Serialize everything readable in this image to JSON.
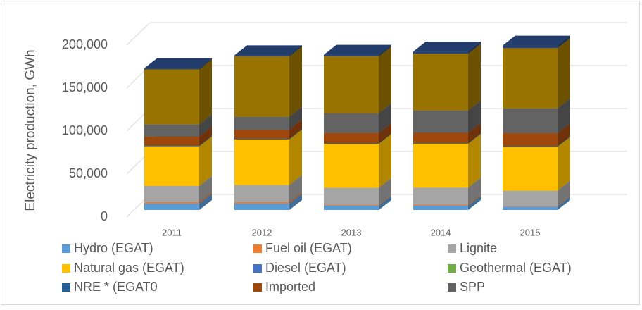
{
  "chart_data": {
    "type": "bar3d_stacked",
    "y_label": "Electricity production, GWh",
    "categories": [
      "2011",
      "2012",
      "2013",
      "2014",
      "2015"
    ],
    "ylim": [
      0,
      200000
    ],
    "yticks": [
      0,
      {
        "value": 50000,
        "label": "50,000"
      },
      {
        "value": 100000,
        "label": "100,000"
      },
      {
        "value": 150000,
        "label": "150,000"
      },
      {
        "value": 200000,
        "label": "200,000"
      }
    ],
    "grid": true,
    "series": [
      {
        "name": "Hydro (EGAT)",
        "color": "#5b9bd5",
        "values": [
          7400,
          7400,
          5000,
          5000,
          4000
        ]
      },
      {
        "name": "Fuel oil (EGAT)",
        "color": "#ed7d31",
        "values": [
          1600,
          1600,
          800,
          1000,
          500
        ]
      },
      {
        "name": "Lignite",
        "color": "#a5a5a5",
        "values": [
          19000,
          20000,
          20000,
          20000,
          18000
        ]
      },
      {
        "name": "Natural gas (EGAT)",
        "color": "#ffc000",
        "values": [
          46000,
          53000,
          51000,
          51000,
          51000
        ]
      },
      {
        "name": "Diesel (EGAT)",
        "color": "#4472c4",
        "values": [
          200,
          200,
          200,
          200,
          200
        ]
      },
      {
        "name": "Geothermal (EGAT)",
        "color": "#70ad47",
        "values": [
          100,
          100,
          100,
          100,
          100
        ]
      },
      {
        "name": "NRE * (EGAT0",
        "color": "#255e91",
        "values": [
          500,
          500,
          500,
          500,
          500
        ]
      },
      {
        "name": "Imported",
        "color": "#9e480e",
        "values": [
          10700,
          10700,
          12000,
          12000,
          15000
        ]
      },
      {
        "name": "SPP",
        "color": "#636363",
        "values": [
          14000,
          15000,
          23000,
          26000,
          29000
        ]
      },
      {
        "color": "#997300",
        "values": [
          64000,
          70000,
          66000,
          66000,
          70000
        ]
      },
      {
        "color": "#264478",
        "values": [
          1500,
          1500,
          2000,
          2500,
          3000
        ]
      }
    ]
  }
}
